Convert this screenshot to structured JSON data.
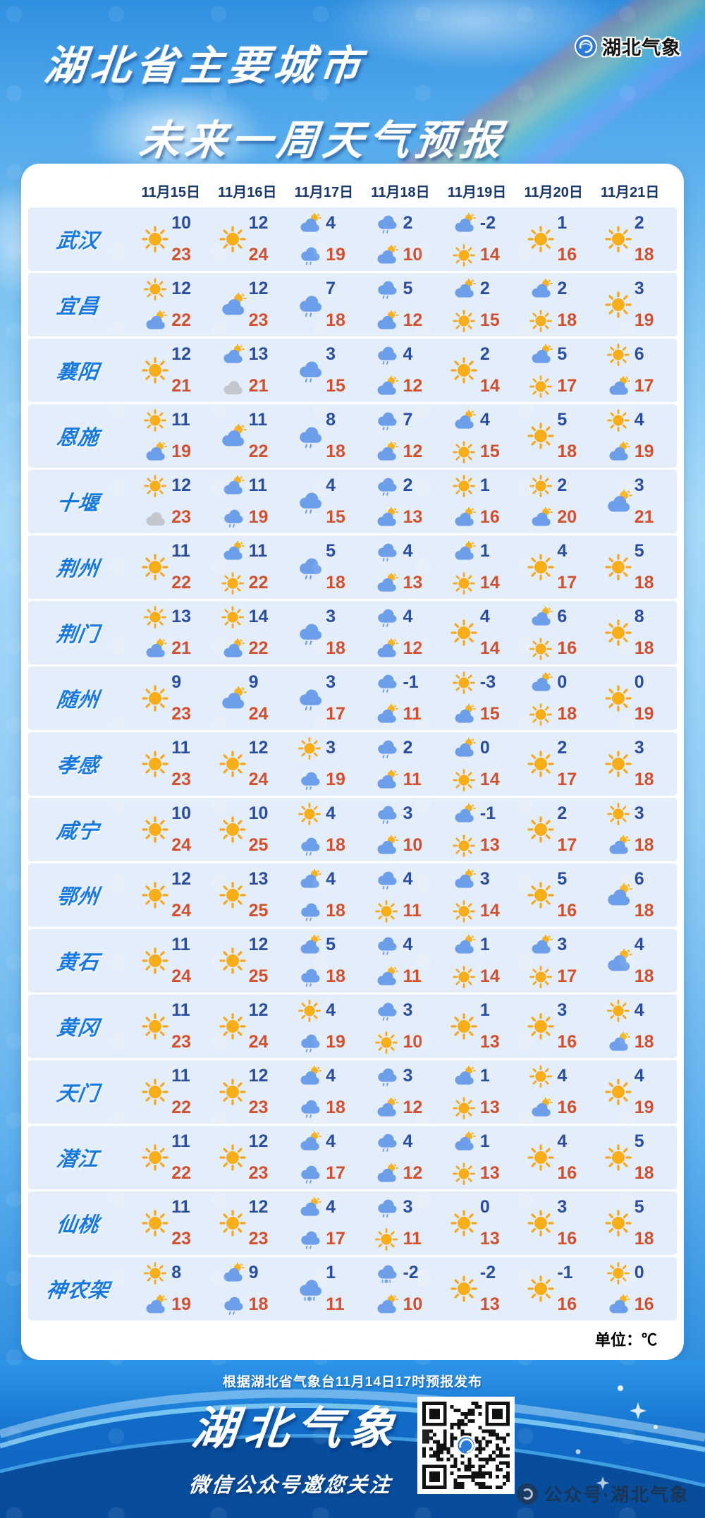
{
  "header": {
    "title_line1": "湖北省主要城市",
    "title_line2": "未来一周天气预报",
    "logo_text": "湖北气象"
  },
  "table": {
    "dates": [
      "11月15日",
      "11月16日",
      "11月17日",
      "11月18日",
      "11月19日",
      "11月20日",
      "11月21日"
    ],
    "unit_label": "单位：℃",
    "icon_legend": {
      "sun": "sunny",
      "cloud-sun": "partly-cloudy",
      "cloud": "overcast",
      "cloud-rain": "light-rain",
      "cloud-sleet": "rain-snow-mix"
    },
    "rows": [
      {
        "city": "武汉",
        "days": [
          {
            "icons": [
              "sun"
            ],
            "min": "10",
            "max": "23"
          },
          {
            "icons": [
              "sun"
            ],
            "min": "12",
            "max": "24"
          },
          {
            "icons": [
              "cloud-sun",
              "cloud-rain"
            ],
            "min": "4",
            "max": "19"
          },
          {
            "icons": [
              "cloud-rain",
              "cloud-sun"
            ],
            "min": "2",
            "max": "10"
          },
          {
            "icons": [
              "cloud-sun",
              "sun"
            ],
            "min": "-2",
            "max": "14"
          },
          {
            "icons": [
              "sun"
            ],
            "min": "1",
            "max": "16"
          },
          {
            "icons": [
              "sun"
            ],
            "min": "2",
            "max": "18"
          }
        ]
      },
      {
        "city": "宜昌",
        "days": [
          {
            "icons": [
              "sun",
              "cloud-sun"
            ],
            "min": "12",
            "max": "22"
          },
          {
            "icons": [
              "cloud-sun"
            ],
            "min": "12",
            "max": "23"
          },
          {
            "icons": [
              "cloud-rain"
            ],
            "min": "7",
            "max": "18"
          },
          {
            "icons": [
              "cloud-rain",
              "cloud-sun"
            ],
            "min": "5",
            "max": "12"
          },
          {
            "icons": [
              "cloud-sun",
              "sun"
            ],
            "min": "2",
            "max": "15"
          },
          {
            "icons": [
              "cloud-sun",
              "sun"
            ],
            "min": "2",
            "max": "18"
          },
          {
            "icons": [
              "sun"
            ],
            "min": "3",
            "max": "19"
          }
        ]
      },
      {
        "city": "襄阳",
        "days": [
          {
            "icons": [
              "sun"
            ],
            "min": "12",
            "max": "21"
          },
          {
            "icons": [
              "cloud-sun",
              "cloud"
            ],
            "min": "13",
            "max": "21"
          },
          {
            "icons": [
              "cloud-rain"
            ],
            "min": "3",
            "max": "15"
          },
          {
            "icons": [
              "cloud-rain",
              "cloud-sun"
            ],
            "min": "4",
            "max": "12"
          },
          {
            "icons": [
              "sun"
            ],
            "min": "2",
            "max": "14"
          },
          {
            "icons": [
              "cloud-sun",
              "sun"
            ],
            "min": "5",
            "max": "17"
          },
          {
            "icons": [
              "sun",
              "cloud-sun"
            ],
            "min": "6",
            "max": "17"
          }
        ]
      },
      {
        "city": "恩施",
        "days": [
          {
            "icons": [
              "sun",
              "cloud-sun"
            ],
            "min": "11",
            "max": "19"
          },
          {
            "icons": [
              "cloud-sun"
            ],
            "min": "11",
            "max": "22"
          },
          {
            "icons": [
              "cloud-rain"
            ],
            "min": "8",
            "max": "18"
          },
          {
            "icons": [
              "cloud-rain",
              "cloud-sun"
            ],
            "min": "7",
            "max": "12"
          },
          {
            "icons": [
              "cloud-sun",
              "sun"
            ],
            "min": "4",
            "max": "15"
          },
          {
            "icons": [
              "sun"
            ],
            "min": "5",
            "max": "18"
          },
          {
            "icons": [
              "sun",
              "cloud-sun"
            ],
            "min": "4",
            "max": "19"
          }
        ]
      },
      {
        "city": "十堰",
        "days": [
          {
            "icons": [
              "sun",
              "cloud"
            ],
            "min": "12",
            "max": "23"
          },
          {
            "icons": [
              "cloud-sun",
              "cloud-rain"
            ],
            "min": "11",
            "max": "19"
          },
          {
            "icons": [
              "cloud-rain"
            ],
            "min": "4",
            "max": "15"
          },
          {
            "icons": [
              "cloud-rain",
              "cloud-sun"
            ],
            "min": "2",
            "max": "13"
          },
          {
            "icons": [
              "sun",
              "cloud-sun"
            ],
            "min": "1",
            "max": "16"
          },
          {
            "icons": [
              "sun",
              "cloud-sun"
            ],
            "min": "2",
            "max": "20"
          },
          {
            "icons": [
              "cloud-sun"
            ],
            "min": "3",
            "max": "21"
          }
        ]
      },
      {
        "city": "荆州",
        "days": [
          {
            "icons": [
              "sun"
            ],
            "min": "11",
            "max": "22"
          },
          {
            "icons": [
              "cloud-sun",
              "sun"
            ],
            "min": "11",
            "max": "22"
          },
          {
            "icons": [
              "cloud-rain"
            ],
            "min": "5",
            "max": "18"
          },
          {
            "icons": [
              "cloud-rain",
              "cloud-sun"
            ],
            "min": "4",
            "max": "13"
          },
          {
            "icons": [
              "cloud-sun",
              "sun"
            ],
            "min": "1",
            "max": "14"
          },
          {
            "icons": [
              "sun"
            ],
            "min": "4",
            "max": "17"
          },
          {
            "icons": [
              "sun"
            ],
            "min": "5",
            "max": "18"
          }
        ]
      },
      {
        "city": "荆门",
        "days": [
          {
            "icons": [
              "sun",
              "cloud-sun"
            ],
            "min": "13",
            "max": "21"
          },
          {
            "icons": [
              "sun",
              "cloud-sun"
            ],
            "min": "14",
            "max": "22"
          },
          {
            "icons": [
              "cloud-rain"
            ],
            "min": "3",
            "max": "18"
          },
          {
            "icons": [
              "cloud-rain",
              "cloud-sun"
            ],
            "min": "4",
            "max": "12"
          },
          {
            "icons": [
              "sun"
            ],
            "min": "4",
            "max": "14"
          },
          {
            "icons": [
              "cloud-sun",
              "sun"
            ],
            "min": "6",
            "max": "16"
          },
          {
            "icons": [
              "sun"
            ],
            "min": "8",
            "max": "18"
          }
        ]
      },
      {
        "city": "随州",
        "days": [
          {
            "icons": [
              "sun"
            ],
            "min": "9",
            "max": "23"
          },
          {
            "icons": [
              "cloud-sun"
            ],
            "min": "9",
            "max": "24"
          },
          {
            "icons": [
              "cloud-rain"
            ],
            "min": "3",
            "max": "17"
          },
          {
            "icons": [
              "cloud-rain",
              "cloud-sun"
            ],
            "min": "-1",
            "max": "11"
          },
          {
            "icons": [
              "sun",
              "cloud-sun"
            ],
            "min": "-3",
            "max": "15"
          },
          {
            "icons": [
              "cloud-sun",
              "sun"
            ],
            "min": "0",
            "max": "18"
          },
          {
            "icons": [
              "sun"
            ],
            "min": "0",
            "max": "19"
          }
        ]
      },
      {
        "city": "孝感",
        "days": [
          {
            "icons": [
              "sun"
            ],
            "min": "11",
            "max": "23"
          },
          {
            "icons": [
              "sun"
            ],
            "min": "12",
            "max": "24"
          },
          {
            "icons": [
              "sun",
              "cloud-rain"
            ],
            "min": "3",
            "max": "19"
          },
          {
            "icons": [
              "cloud-rain",
              "cloud-sun"
            ],
            "min": "2",
            "max": "11"
          },
          {
            "icons": [
              "cloud-sun",
              "sun"
            ],
            "min": "0",
            "max": "14"
          },
          {
            "icons": [
              "sun"
            ],
            "min": "2",
            "max": "17"
          },
          {
            "icons": [
              "sun"
            ],
            "min": "3",
            "max": "18"
          }
        ]
      },
      {
        "city": "咸宁",
        "days": [
          {
            "icons": [
              "sun"
            ],
            "min": "10",
            "max": "24"
          },
          {
            "icons": [
              "sun"
            ],
            "min": "10",
            "max": "25"
          },
          {
            "icons": [
              "sun",
              "cloud-rain"
            ],
            "min": "4",
            "max": "18"
          },
          {
            "icons": [
              "cloud-rain",
              "cloud-sun"
            ],
            "min": "3",
            "max": "10"
          },
          {
            "icons": [
              "cloud-sun",
              "sun"
            ],
            "min": "-1",
            "max": "13"
          },
          {
            "icons": [
              "sun"
            ],
            "min": "2",
            "max": "17"
          },
          {
            "icons": [
              "sun",
              "cloud-sun"
            ],
            "min": "3",
            "max": "18"
          }
        ]
      },
      {
        "city": "鄂州",
        "days": [
          {
            "icons": [
              "sun"
            ],
            "min": "12",
            "max": "24"
          },
          {
            "icons": [
              "sun"
            ],
            "min": "13",
            "max": "25"
          },
          {
            "icons": [
              "cloud-sun",
              "cloud-rain"
            ],
            "min": "4",
            "max": "18"
          },
          {
            "icons": [
              "cloud-rain",
              "sun"
            ],
            "min": "4",
            "max": "11"
          },
          {
            "icons": [
              "cloud-sun",
              "sun"
            ],
            "min": "3",
            "max": "14"
          },
          {
            "icons": [
              "sun"
            ],
            "min": "5",
            "max": "16"
          },
          {
            "icons": [
              "cloud-sun"
            ],
            "min": "6",
            "max": "18"
          }
        ]
      },
      {
        "city": "黄石",
        "days": [
          {
            "icons": [
              "sun"
            ],
            "min": "11",
            "max": "24"
          },
          {
            "icons": [
              "sun"
            ],
            "min": "12",
            "max": "25"
          },
          {
            "icons": [
              "cloud-sun",
              "cloud-rain"
            ],
            "min": "5",
            "max": "18"
          },
          {
            "icons": [
              "cloud-rain",
              "cloud-sun"
            ],
            "min": "4",
            "max": "11"
          },
          {
            "icons": [
              "cloud-sun",
              "sun"
            ],
            "min": "1",
            "max": "14"
          },
          {
            "icons": [
              "cloud-sun",
              "sun"
            ],
            "min": "3",
            "max": "17"
          },
          {
            "icons": [
              "cloud-sun"
            ],
            "min": "4",
            "max": "18"
          }
        ]
      },
      {
        "city": "黄冈",
        "days": [
          {
            "icons": [
              "sun"
            ],
            "min": "11",
            "max": "23"
          },
          {
            "icons": [
              "sun"
            ],
            "min": "12",
            "max": "24"
          },
          {
            "icons": [
              "sun",
              "cloud-rain"
            ],
            "min": "4",
            "max": "19"
          },
          {
            "icons": [
              "cloud-rain",
              "sun"
            ],
            "min": "3",
            "max": "10"
          },
          {
            "icons": [
              "sun"
            ],
            "min": "1",
            "max": "13"
          },
          {
            "icons": [
              "sun"
            ],
            "min": "3",
            "max": "16"
          },
          {
            "icons": [
              "sun",
              "cloud-sun"
            ],
            "min": "4",
            "max": "18"
          }
        ]
      },
      {
        "city": "天门",
        "days": [
          {
            "icons": [
              "sun"
            ],
            "min": "11",
            "max": "22"
          },
          {
            "icons": [
              "sun"
            ],
            "min": "12",
            "max": "23"
          },
          {
            "icons": [
              "cloud-sun",
              "cloud-rain"
            ],
            "min": "4",
            "max": "18"
          },
          {
            "icons": [
              "cloud-rain",
              "cloud-sun"
            ],
            "min": "3",
            "max": "12"
          },
          {
            "icons": [
              "cloud-sun",
              "sun"
            ],
            "min": "1",
            "max": "13"
          },
          {
            "icons": [
              "sun",
              "cloud-sun"
            ],
            "min": "4",
            "max": "16"
          },
          {
            "icons": [
              "sun"
            ],
            "min": "4",
            "max": "19"
          }
        ]
      },
      {
        "city": "潜江",
        "days": [
          {
            "icons": [
              "sun"
            ],
            "min": "11",
            "max": "22"
          },
          {
            "icons": [
              "sun"
            ],
            "min": "12",
            "max": "23"
          },
          {
            "icons": [
              "cloud-sun",
              "cloud-rain"
            ],
            "min": "4",
            "max": "17"
          },
          {
            "icons": [
              "cloud-rain",
              "cloud-sun"
            ],
            "min": "4",
            "max": "12"
          },
          {
            "icons": [
              "cloud-sun",
              "sun"
            ],
            "min": "1",
            "max": "13"
          },
          {
            "icons": [
              "sun"
            ],
            "min": "4",
            "max": "16"
          },
          {
            "icons": [
              "sun"
            ],
            "min": "5",
            "max": "18"
          }
        ]
      },
      {
        "city": "仙桃",
        "days": [
          {
            "icons": [
              "sun"
            ],
            "min": "11",
            "max": "23"
          },
          {
            "icons": [
              "sun"
            ],
            "min": "12",
            "max": "23"
          },
          {
            "icons": [
              "cloud-sun",
              "cloud-rain"
            ],
            "min": "4",
            "max": "17"
          },
          {
            "icons": [
              "cloud-rain",
              "sun"
            ],
            "min": "3",
            "max": "11"
          },
          {
            "icons": [
              "sun"
            ],
            "min": "0",
            "max": "13"
          },
          {
            "icons": [
              "sun"
            ],
            "min": "3",
            "max": "16"
          },
          {
            "icons": [
              "sun"
            ],
            "min": "5",
            "max": "18"
          }
        ]
      },
      {
        "city": "神农架",
        "days": [
          {
            "icons": [
              "sun",
              "cloud-sun"
            ],
            "min": "8",
            "max": "19"
          },
          {
            "icons": [
              "cloud-sun",
              "cloud-rain"
            ],
            "min": "9",
            "max": "18"
          },
          {
            "icons": [
              "cloud-sleet"
            ],
            "min": "1",
            "max": "11"
          },
          {
            "icons": [
              "cloud-sleet",
              "cloud-sun"
            ],
            "min": "-2",
            "max": "10"
          },
          {
            "icons": [
              "sun"
            ],
            "min": "-2",
            "max": "13"
          },
          {
            "icons": [
              "sun"
            ],
            "min": "-1",
            "max": "16"
          },
          {
            "icons": [
              "sun",
              "cloud-sun"
            ],
            "min": "0",
            "max": "16"
          }
        ]
      }
    ]
  },
  "footer": {
    "source_note": "根据湖北省气象台11月14日17时预报发布",
    "brand": "湖北气象",
    "slogan": "微信公众号邀您关注",
    "watermark": "公众号·湖北气象"
  },
  "colors": {
    "min_temp": "#2a4da0",
    "max_temp": "#d0502f",
    "city_label": "#1778e0",
    "date_label": "#18386b",
    "row_bg": "#e4eefa",
    "sun": "#f9ae17",
    "cloud_blue": "#6d9ee9",
    "cloud_gray": "#c3c6cc",
    "footer_bg": "#0a57ad"
  }
}
